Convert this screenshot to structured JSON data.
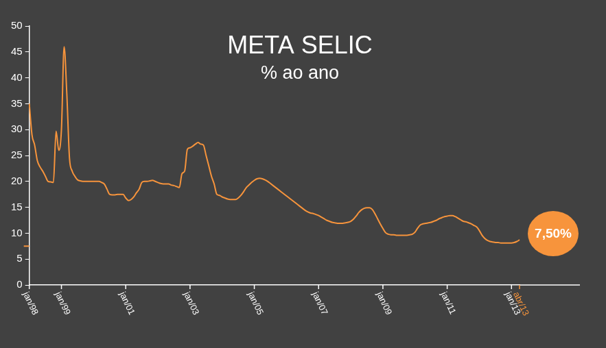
{
  "chart_data": {
    "type": "line",
    "title": "META SELIC",
    "subtitle": "% ao ano",
    "categories": [
      "jan/98",
      null,
      null,
      null,
      null,
      null,
      null,
      null,
      null,
      null,
      null,
      null,
      "jan/99",
      null,
      null,
      null,
      null,
      null,
      null,
      null,
      null,
      null,
      null,
      null,
      null,
      null,
      null,
      null,
      null,
      null,
      null,
      null,
      null,
      null,
      null,
      null,
      "jan/01",
      null,
      null,
      null,
      null,
      null,
      null,
      null,
      null,
      null,
      null,
      null,
      null,
      null,
      null,
      null,
      null,
      null,
      null,
      null,
      null,
      null,
      null,
      null,
      "jan/03",
      null,
      null,
      null,
      null,
      null,
      null,
      null,
      null,
      null,
      null,
      null,
      null,
      null,
      null,
      null,
      null,
      null,
      null,
      null,
      null,
      null,
      null,
      null,
      "jan/05",
      null,
      null,
      null,
      null,
      null,
      null,
      null,
      null,
      null,
      null,
      null,
      null,
      null,
      null,
      null,
      null,
      null,
      null,
      null,
      null,
      null,
      null,
      null,
      "jan/07",
      null,
      null,
      null,
      null,
      null,
      null,
      null,
      null,
      null,
      null,
      null,
      null,
      null,
      null,
      null,
      null,
      null,
      null,
      null,
      null,
      null,
      null,
      null,
      "jan/09",
      null,
      null,
      null,
      null,
      null,
      null,
      null,
      null,
      null,
      null,
      null,
      null,
      null,
      null,
      null,
      null,
      null,
      null,
      null,
      null,
      null,
      null,
      null,
      "jan/11",
      null,
      null,
      null,
      null,
      null,
      null,
      null,
      null,
      null,
      null,
      null,
      null,
      null,
      null,
      null,
      null,
      null,
      null,
      null,
      null,
      null,
      null,
      null,
      "jan/13",
      null,
      null,
      "abr/13"
    ],
    "values": [
      35,
      29,
      27,
      24,
      22.8,
      22,
      21,
      20,
      19.9,
      19.8,
      29.7,
      26,
      30,
      46,
      37,
      24.5,
      22,
      21,
      20.3,
      20.1,
      20,
      20,
      20,
      20,
      20,
      20,
      20,
      19.8,
      19.5,
      18.5,
      17.5,
      17.4,
      17.4,
      17.5,
      17.5,
      17.5,
      16.8,
      16.3,
      16.5,
      17,
      17.8,
      18.5,
      19.8,
      20,
      20,
      20.1,
      20.2,
      20,
      19.8,
      19.6,
      19.5,
      19.5,
      19.5,
      19.3,
      19.2,
      19,
      18.8,
      21.5,
      22,
      26.2,
      26.5,
      26.8,
      27.2,
      27.5,
      27.2,
      27,
      25,
      23,
      21,
      19.5,
      17.5,
      17.3,
      17,
      16.8,
      16.6,
      16.5,
      16.5,
      16.5,
      16.8,
      17.3,
      18,
      18.8,
      19.3,
      19.8,
      20.2,
      20.5,
      20.6,
      20.5,
      20.3,
      20,
      19.6,
      19.2,
      18.8,
      18.4,
      18,
      17.6,
      17.2,
      16.8,
      16.4,
      16,
      15.6,
      15.2,
      14.8,
      14.4,
      14.1,
      13.9,
      13.8,
      13.6,
      13.4,
      13.1,
      12.8,
      12.5,
      12.3,
      12.1,
      12,
      11.9,
      11.9,
      11.9,
      12,
      12.1,
      12.3,
      12.7,
      13.3,
      14,
      14.5,
      14.8,
      14.9,
      14.9,
      14.6,
      13.8,
      12.8,
      11.8,
      10.9,
      10.1,
      9.8,
      9.7,
      9.7,
      9.6,
      9.6,
      9.6,
      9.6,
      9.6,
      9.7,
      9.8,
      10.2,
      11,
      11.6,
      11.8,
      11.9,
      12,
      12.1,
      12.3,
      12.5,
      12.8,
      13,
      13.2,
      13.3,
      13.4,
      13.4,
      13.2,
      12.9,
      12.6,
      12.3,
      12.2,
      12,
      11.8,
      11.5,
      11.2,
      10.5,
      9.6,
      9,
      8.6,
      8.4,
      8.3,
      8.2,
      8.2,
      8.1,
      8.1,
      8.1,
      8.1,
      8.1,
      8.2,
      8.4,
      8.7
    ],
    "color": "#f7943c",
    "ylim": [
      0,
      50
    ],
    "yticks": [
      0,
      5,
      10,
      15,
      20,
      25,
      30,
      35,
      40,
      45,
      50
    ],
    "grid": false,
    "tick_labels": true,
    "annotation": {
      "label": "7,50%",
      "value": 7.5
    }
  }
}
